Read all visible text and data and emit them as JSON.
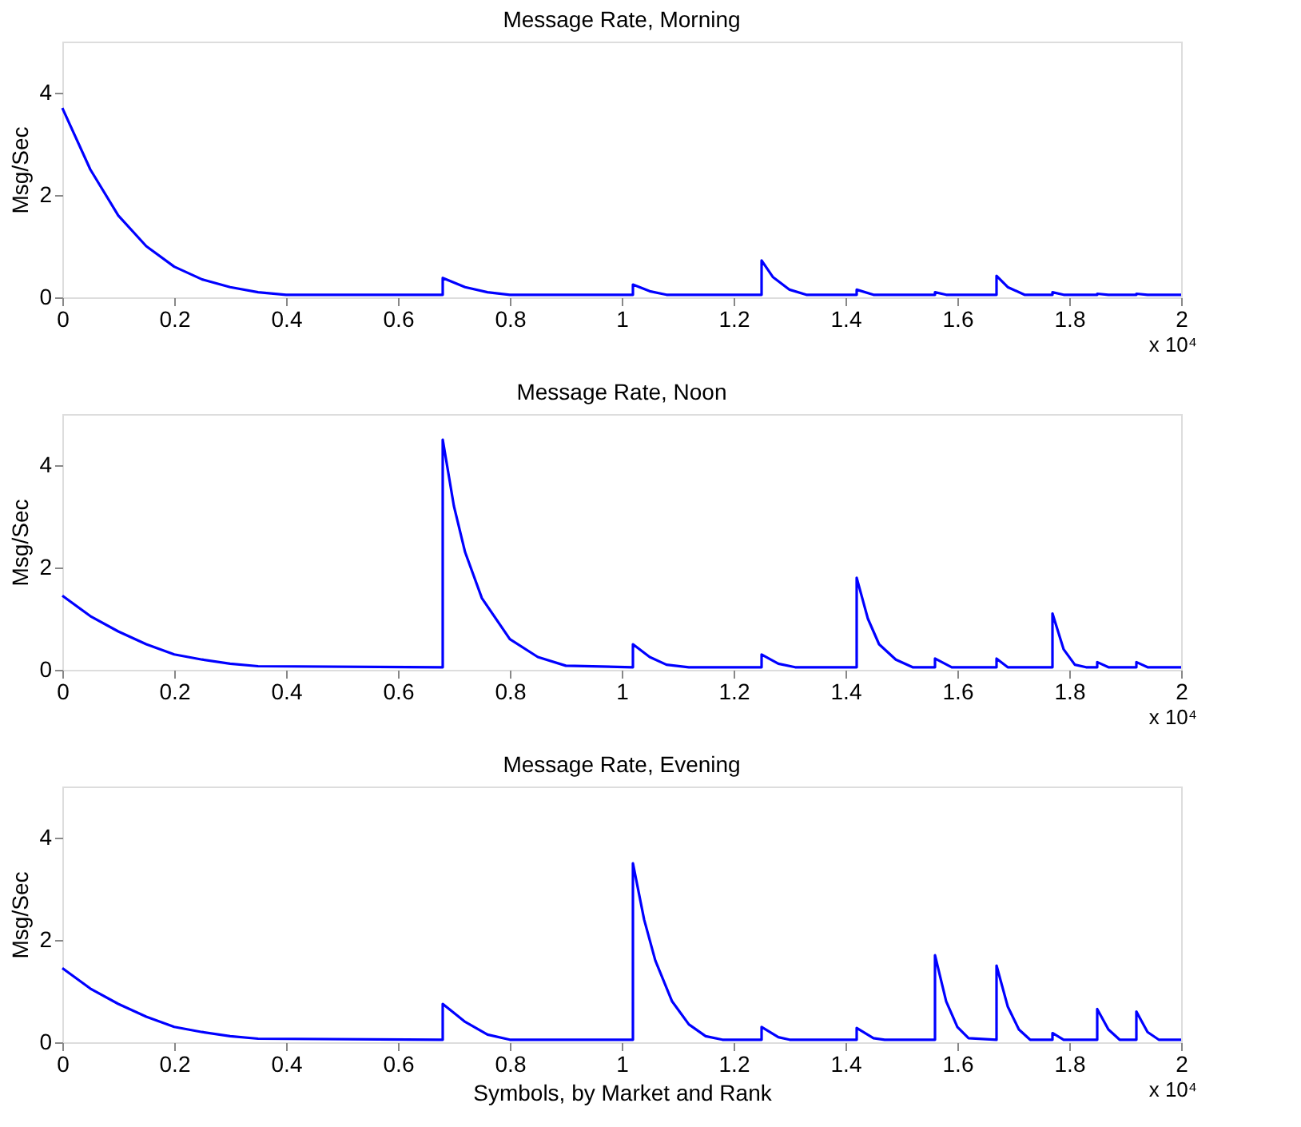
{
  "chart_data": [
    {
      "type": "line",
      "title": "Message Rate, Morning",
      "ylabel": "Msg/Sec",
      "annotations": [
        "x 10⁴"
      ],
      "xlim": [
        0,
        2
      ],
      "ylim": [
        0,
        5
      ],
      "yticks": [
        0,
        2,
        4
      ],
      "xticks": [
        0,
        0.2,
        0.4,
        0.6,
        0.8,
        1,
        1.2,
        1.4,
        1.6,
        1.8,
        2
      ],
      "grid": false,
      "marker": "none",
      "x": [
        0,
        0.05,
        0.1,
        0.15,
        0.2,
        0.25,
        0.3,
        0.35,
        0.4,
        0.68,
        0.68,
        0.72,
        0.76,
        0.8,
        1.02,
        1.02,
        1.05,
        1.08,
        1.25,
        1.25,
        1.27,
        1.3,
        1.33,
        1.42,
        1.42,
        1.45,
        1.56,
        1.56,
        1.58,
        1.67,
        1.67,
        1.69,
        1.72,
        1.77,
        1.77,
        1.79,
        1.85,
        1.85,
        1.87,
        1.92,
        1.92,
        1.94,
        2
      ],
      "series": [
        {
          "color": "#0000ff",
          "values": [
            3.7,
            2.5,
            1.6,
            1.0,
            0.6,
            0.35,
            0.2,
            0.1,
            0.05,
            0.05,
            0.38,
            0.2,
            0.1,
            0.05,
            0.05,
            0.25,
            0.12,
            0.05,
            0.05,
            0.72,
            0.4,
            0.15,
            0.05,
            0.05,
            0.15,
            0.05,
            0.05,
            0.1,
            0.05,
            0.05,
            0.42,
            0.2,
            0.05,
            0.05,
            0.1,
            0.05,
            0.05,
            0.07,
            0.05,
            0.05,
            0.07,
            0.05,
            0.05
          ]
        }
      ]
    },
    {
      "type": "line",
      "title": "Message Rate, Noon",
      "ylabel": "Msg/Sec",
      "annotations": [
        "x 10⁴"
      ],
      "xlim": [
        0,
        2
      ],
      "ylim": [
        0,
        5
      ],
      "yticks": [
        0,
        2,
        4
      ],
      "xticks": [
        0,
        0.2,
        0.4,
        0.6,
        0.8,
        1,
        1.2,
        1.4,
        1.6,
        1.8,
        2
      ],
      "grid": false,
      "marker": "none",
      "x": [
        0,
        0.05,
        0.1,
        0.15,
        0.2,
        0.25,
        0.3,
        0.35,
        0.68,
        0.68,
        0.7,
        0.72,
        0.75,
        0.8,
        0.85,
        0.9,
        1.02,
        1.02,
        1.05,
        1.08,
        1.12,
        1.25,
        1.25,
        1.28,
        1.31,
        1.42,
        1.42,
        1.44,
        1.46,
        1.49,
        1.52,
        1.56,
        1.56,
        1.59,
        1.67,
        1.67,
        1.69,
        1.77,
        1.77,
        1.79,
        1.81,
        1.83,
        1.85,
        1.85,
        1.87,
        1.92,
        1.92,
        1.94,
        2
      ],
      "series": [
        {
          "color": "#0000ff",
          "values": [
            1.45,
            1.05,
            0.75,
            0.5,
            0.3,
            0.2,
            0.12,
            0.07,
            0.05,
            4.5,
            3.2,
            2.3,
            1.4,
            0.6,
            0.25,
            0.08,
            0.05,
            0.5,
            0.25,
            0.1,
            0.05,
            0.05,
            0.3,
            0.12,
            0.05,
            0.05,
            1.8,
            1.0,
            0.5,
            0.2,
            0.05,
            0.05,
            0.22,
            0.05,
            0.05,
            0.22,
            0.05,
            0.05,
            1.1,
            0.4,
            0.1,
            0.05,
            0.05,
            0.15,
            0.05,
            0.05,
            0.15,
            0.05,
            0.05
          ]
        }
      ]
    },
    {
      "type": "line",
      "title": "Message Rate, Evening",
      "ylabel": "Msg/Sec",
      "xlabel": "Symbols, by Market and Rank",
      "annotations": [
        "x 10⁴"
      ],
      "xlim": [
        0,
        2
      ],
      "ylim": [
        0,
        5
      ],
      "yticks": [
        0,
        2,
        4
      ],
      "xticks": [
        0,
        0.2,
        0.4,
        0.6,
        0.8,
        1,
        1.2,
        1.4,
        1.6,
        1.8,
        2
      ],
      "grid": false,
      "marker": "none",
      "x": [
        0,
        0.05,
        0.1,
        0.15,
        0.2,
        0.25,
        0.3,
        0.35,
        0.68,
        0.68,
        0.72,
        0.76,
        0.8,
        1.02,
        1.02,
        1.04,
        1.06,
        1.09,
        1.12,
        1.15,
        1.18,
        1.25,
        1.25,
        1.28,
        1.3,
        1.42,
        1.42,
        1.45,
        1.47,
        1.56,
        1.56,
        1.58,
        1.6,
        1.62,
        1.67,
        1.67,
        1.69,
        1.71,
        1.73,
        1.77,
        1.77,
        1.79,
        1.85,
        1.85,
        1.87,
        1.89,
        1.92,
        1.92,
        1.94,
        1.96,
        2
      ],
      "series": [
        {
          "color": "#0000ff",
          "values": [
            1.45,
            1.05,
            0.75,
            0.5,
            0.3,
            0.2,
            0.12,
            0.07,
            0.05,
            0.75,
            0.4,
            0.15,
            0.05,
            0.05,
            3.5,
            2.4,
            1.6,
            0.8,
            0.35,
            0.12,
            0.05,
            0.05,
            0.3,
            0.1,
            0.05,
            0.05,
            0.28,
            0.08,
            0.05,
            0.05,
            1.7,
            0.8,
            0.3,
            0.08,
            0.05,
            1.5,
            0.7,
            0.25,
            0.05,
            0.05,
            0.18,
            0.05,
            0.05,
            0.65,
            0.25,
            0.05,
            0.05,
            0.6,
            0.2,
            0.05,
            0.05
          ]
        }
      ]
    }
  ]
}
